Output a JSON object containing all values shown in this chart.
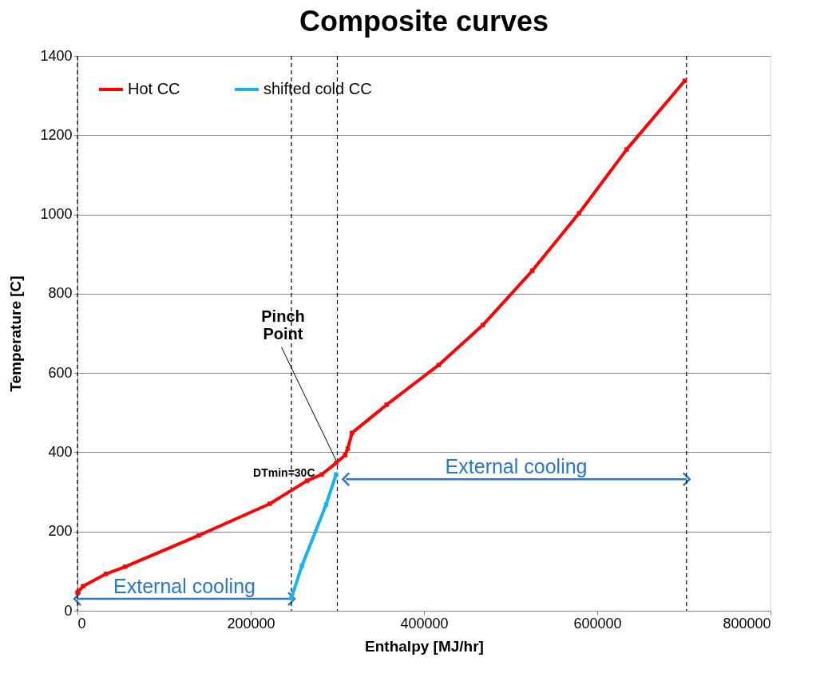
{
  "chart_data": {
    "type": "line",
    "title": "Composite curves",
    "xlabel": "Enthalpy  [MJ/hr]",
    "ylabel": "Temperature  [C]",
    "xlim": [
      0,
      800000
    ],
    "ylim": [
      0,
      1400
    ],
    "xticks": [
      0,
      200000,
      400000,
      600000,
      800000
    ],
    "yticks": [
      0,
      200,
      400,
      600,
      800,
      1000,
      1200,
      1400
    ],
    "grid": "y",
    "legend": "top left",
    "marker": "square",
    "line_style": "solid",
    "series": [
      {
        "name": "Hot CC",
        "color": "#ff0000",
        "x": [
          0,
          6500,
          33000,
          55000,
          140000,
          222000,
          265000,
          282000,
          298600,
          309000,
          312000,
          317000,
          357000,
          417000,
          468000,
          525000,
          579000,
          634000,
          701000
        ],
        "values": [
          46,
          62,
          93,
          111,
          190,
          270,
          328,
          344,
          373,
          393,
          409,
          449,
          520,
          620,
          721,
          858,
          1003,
          1164,
          1337
        ]
      },
      {
        "name": "shifted cold CC",
        "color": "#19b2ef",
        "x": [
          247000,
          259000,
          287000,
          298600
        ],
        "values": [
          32,
          113,
          268,
          344
        ]
      },
      {
        "color": "#2e75c4",
        "marker": "cross",
        "x": [
          0,
          247000
        ],
        "values": [
          30,
          30
        ]
      },
      {
        "color": "#2e75c4",
        "marker": "cross",
        "x": [
          310000,
          703000
        ],
        "values": [
          332,
          332
        ]
      }
    ],
    "ref_lines": [
      {
        "axis": "x",
        "value": 0,
        "line_style": "dashed",
        "color": "#000000"
      },
      {
        "axis": "x",
        "value": 247000,
        "line_style": "dashed",
        "color": "#000000"
      },
      {
        "axis": "x",
        "value": 300000,
        "line_style": "dashed",
        "color": "#000000"
      },
      {
        "axis": "x",
        "value": 703000,
        "line_style": "dashed",
        "color": "#000000"
      }
    ],
    "annotations": [
      {
        "text": "Pinch Point",
        "x": 300000,
        "y": 373
      },
      {
        "text": "DTmin=30C",
        "x": 300000,
        "y": 358
      },
      "External cooling",
      "External cooling"
    ]
  }
}
